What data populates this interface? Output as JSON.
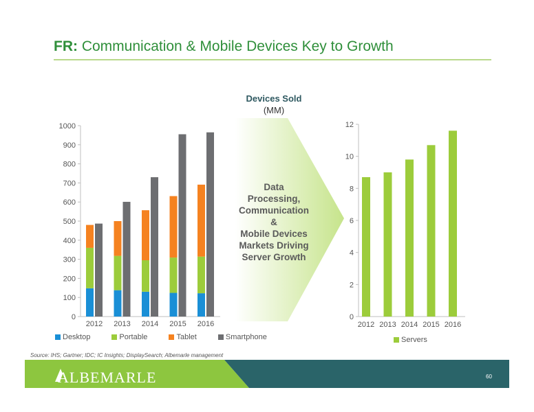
{
  "header": {
    "title_bold": "FR:",
    "title_rest": " Communication & Mobile Devices Key to Growth"
  },
  "subhead": {
    "line1": "Devices Sold",
    "line2": "(MM)"
  },
  "arrow_text": "Data\nProcessing,\nCommunication\n&\nMobile Devices\nMarkets Driving\nServer Growth",
  "source": "Source: IHS; Gartner; IDC; IC Insights; DisplaySearch; Albemarle management",
  "footer": {
    "logo_text": "ALBEMARLE",
    "page_number": "60"
  },
  "colors": {
    "desktop": "#1a8fd6",
    "portable": "#9ccc3b",
    "tablet": "#f58220",
    "smartphone": "#6d6e71",
    "servers": "#9ccc3b",
    "title": "#2f8f3a",
    "footer_green": "#8dc63f",
    "footer_teal": "#2a6469"
  },
  "chart_data": [
    {
      "type": "bar",
      "stacked_group": [
        "Desktop",
        "Portable",
        "Tablet"
      ],
      "categories": [
        "2012",
        "2013",
        "2014",
        "2015",
        "2016"
      ],
      "series": [
        {
          "name": "Desktop",
          "values": [
            148,
            138,
            130,
            124,
            122
          ]
        },
        {
          "name": "Portable",
          "values": [
            212,
            180,
            165,
            185,
            192
          ]
        },
        {
          "name": "Tablet",
          "values": [
            120,
            182,
            262,
            322,
            377
          ]
        },
        {
          "name": "Smartphone",
          "values": [
            487,
            601,
            730,
            955,
            965
          ]
        }
      ],
      "ylim": [
        0,
        1000
      ],
      "yticks": [
        0,
        100,
        200,
        300,
        400,
        500,
        600,
        700,
        800,
        900,
        1000
      ],
      "legend": [
        "Desktop",
        "Portable",
        "Tablet",
        "Smartphone"
      ],
      "legend_position": "bottom"
    },
    {
      "type": "bar",
      "categories": [
        "2012",
        "2013",
        "2014",
        "2015",
        "2016"
      ],
      "series": [
        {
          "name": "Servers",
          "values": [
            8.7,
            9.0,
            9.8,
            10.7,
            11.6
          ]
        }
      ],
      "ylim": [
        0,
        12
      ],
      "yticks": [
        0,
        2,
        4,
        6,
        8,
        10,
        12
      ],
      "legend": [
        "Servers"
      ],
      "legend_position": "bottom"
    }
  ]
}
